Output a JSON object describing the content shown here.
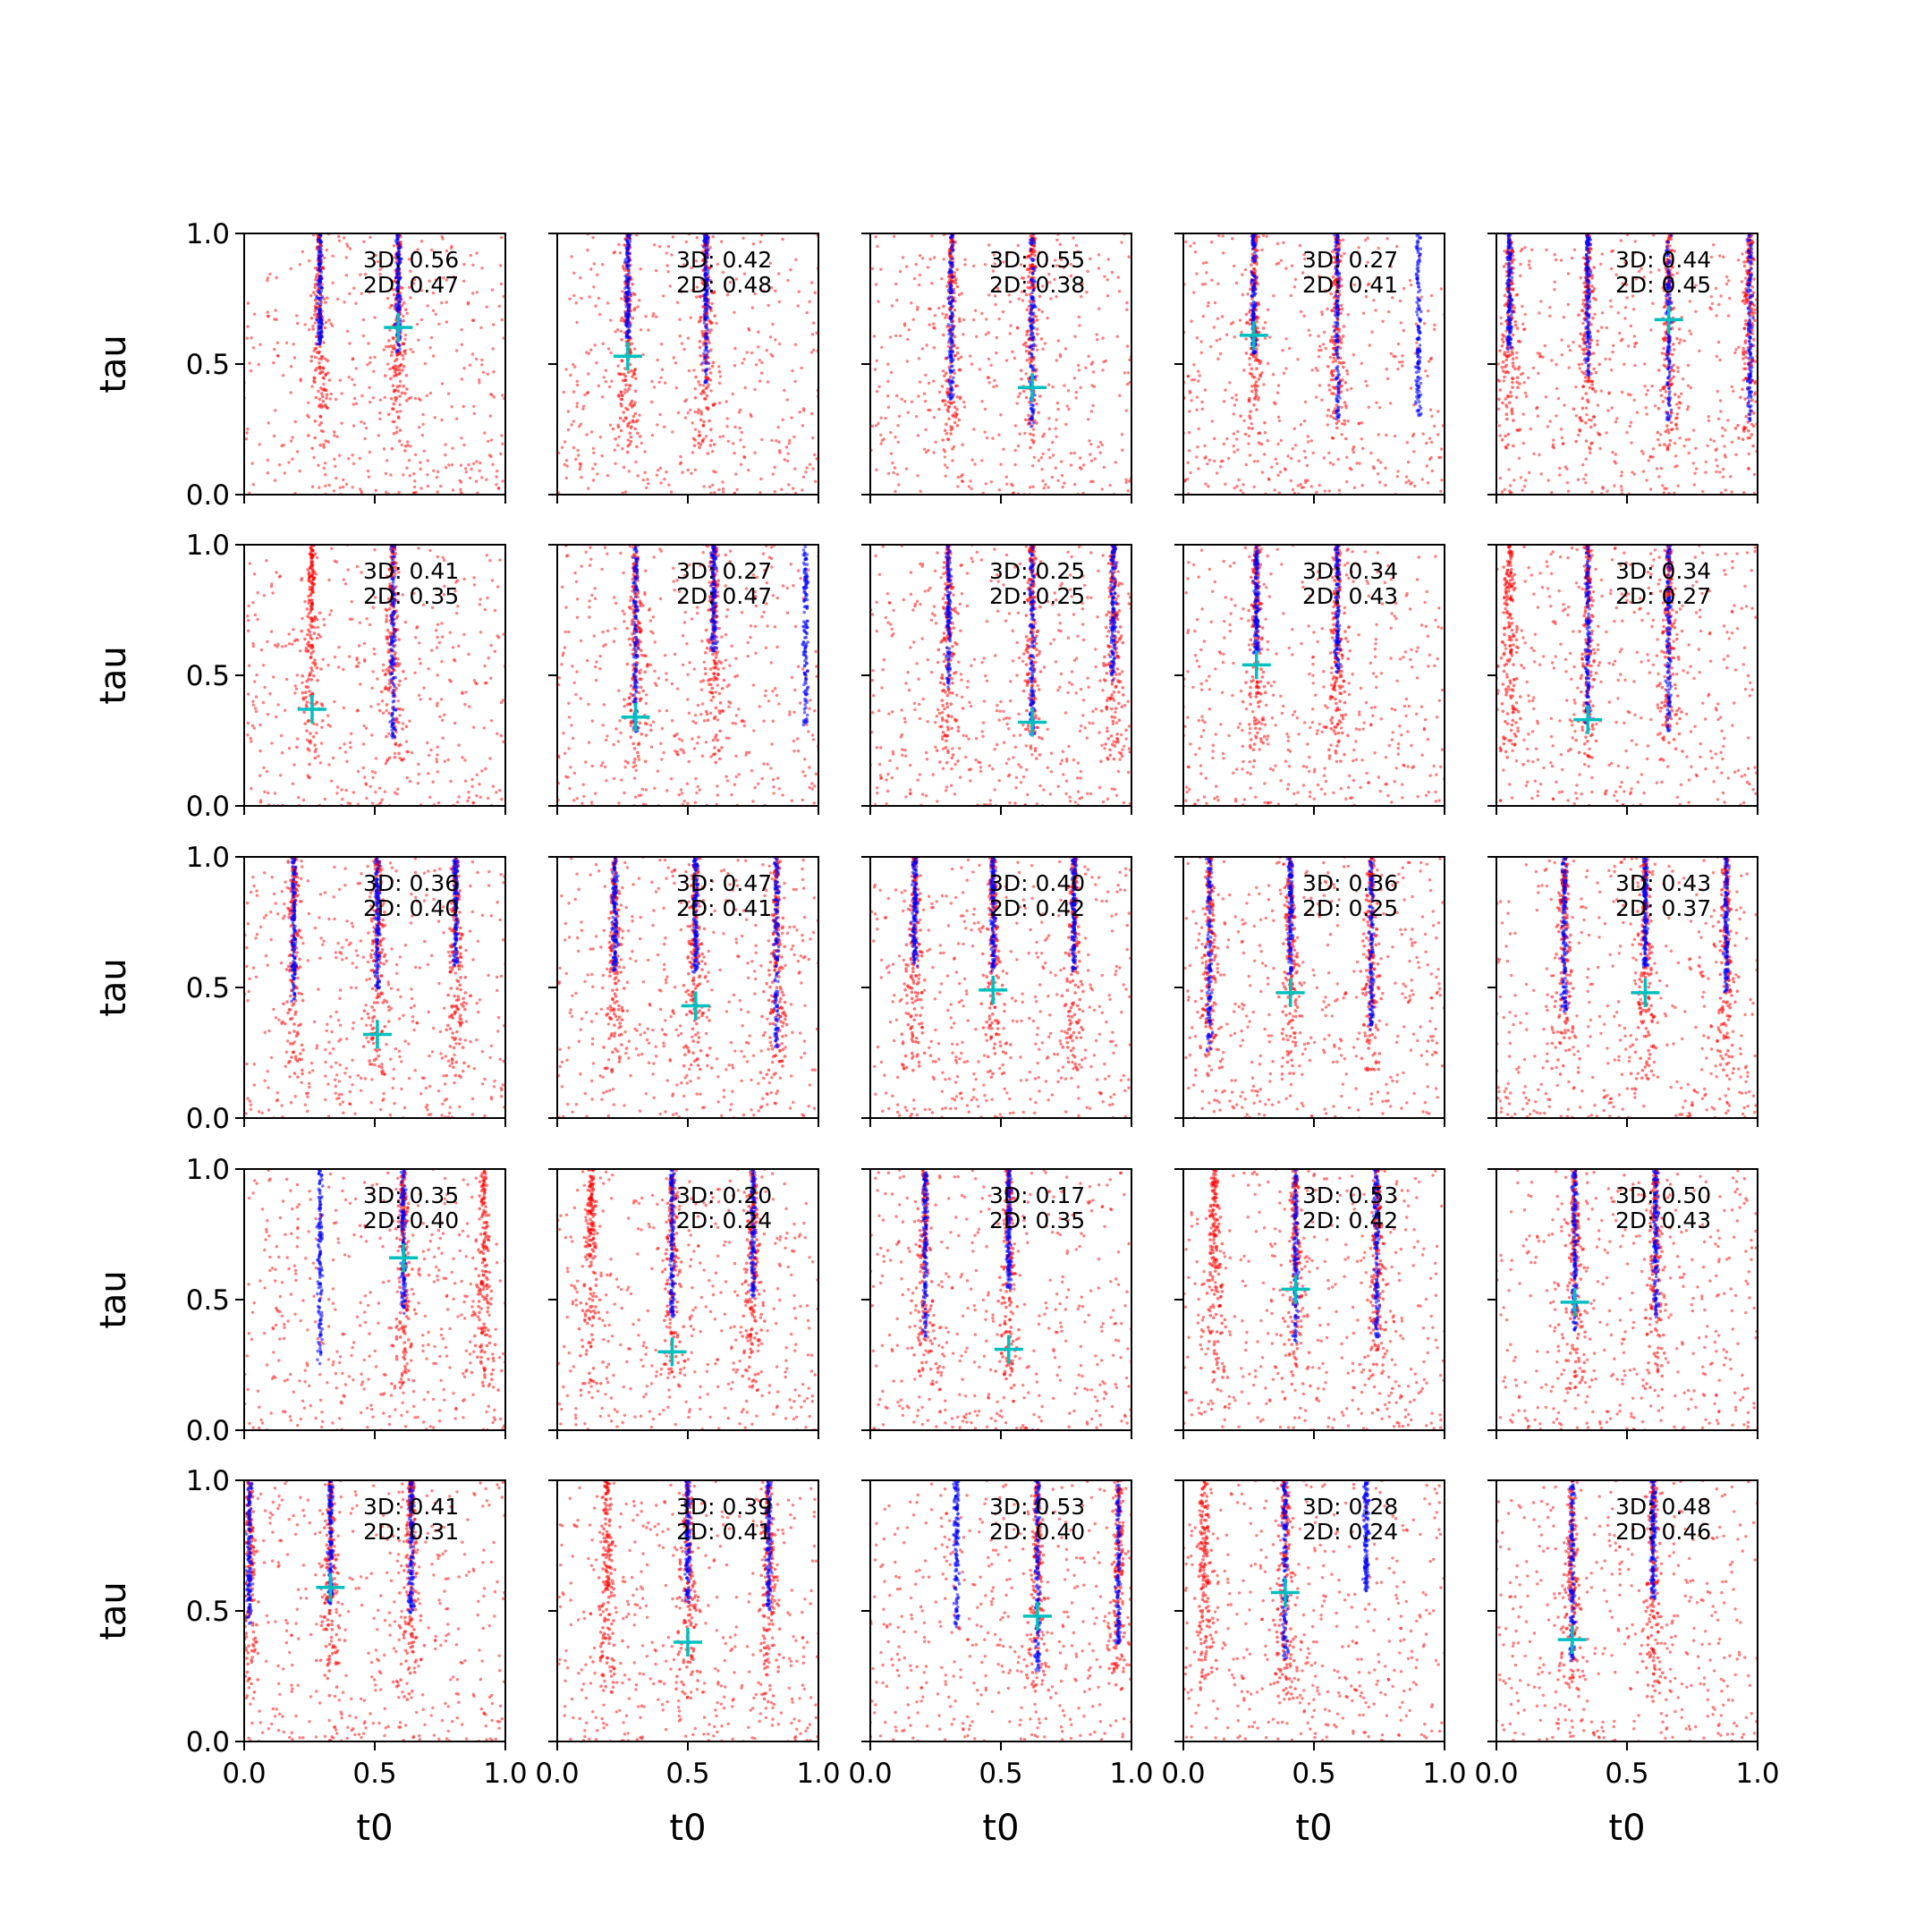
{
  "chart_data": {
    "type": "scatter",
    "layout": {
      "rows": 5,
      "cols": 5
    },
    "xlabel": "t0",
    "ylabel": "tau",
    "xlim": [
      0,
      1
    ],
    "ylim": [
      0,
      1
    ],
    "xticks": [
      "0.0",
      "0.5",
      "1.0"
    ],
    "yticks": [
      "0.0",
      "0.5",
      "1.0"
    ],
    "grid": false,
    "colors": {
      "sample_a": "#0000ff",
      "sample_b": "#ff0000",
      "marker": "#00bfbf"
    },
    "series_note": "blue and red point clouds with a cyan cross marker per panel",
    "panels": [
      {
        "annot3d": "3D: 0.56",
        "annot2d": "2D: 0.47",
        "marker": [
          0.59,
          0.64
        ],
        "blue": [
          0.29,
          0.59
        ],
        "red": [
          0.29,
          0.59
        ]
      },
      {
        "annot3d": "3D: 0.42",
        "annot2d": "2D: 0.48",
        "marker": [
          0.27,
          0.53
        ],
        "blue": [
          0.27,
          0.57
        ],
        "red": [
          0.27,
          0.57
        ]
      },
      {
        "annot3d": "3D: 0.55",
        "annot2d": "2D: 0.38",
        "marker": [
          0.62,
          0.41
        ],
        "blue": [
          0.31,
          0.62
        ],
        "red": [
          0.62,
          0.31
        ]
      },
      {
        "annot3d": "3D: 0.27",
        "annot2d": "2D: 0.41",
        "marker": [
          0.27,
          0.61
        ],
        "blue": [
          0.27,
          0.59,
          0.9
        ],
        "red": [
          0.27,
          0.59
        ]
      },
      {
        "annot3d": "3D: 0.44",
        "annot2d": "2D: 0.45",
        "marker": [
          0.66,
          0.67
        ],
        "blue": [
          0.05,
          0.35,
          0.66,
          0.97
        ],
        "red": [
          0.05,
          0.35,
          0.66,
          0.97
        ]
      },
      {
        "annot3d": "3D: 0.41",
        "annot2d": "2D: 0.35",
        "marker": [
          0.26,
          0.37
        ],
        "blue": [
          0.57
        ],
        "red": [
          0.26,
          0.57
        ]
      },
      {
        "annot3d": "3D: 0.27",
        "annot2d": "2D: 0.47",
        "marker": [
          0.3,
          0.34
        ],
        "blue": [
          0.3,
          0.6,
          0.95
        ],
        "red": [
          0.3,
          0.6
        ]
      },
      {
        "annot3d": "3D: 0.25",
        "annot2d": "2D: 0.25",
        "marker": [
          0.62,
          0.32
        ],
        "blue": [
          0.3,
          0.62,
          0.93
        ],
        "red": [
          0.3,
          0.62,
          0.93
        ]
      },
      {
        "annot3d": "3D: 0.34",
        "annot2d": "2D: 0.43",
        "marker": [
          0.28,
          0.54
        ],
        "blue": [
          0.28,
          0.59
        ],
        "red": [
          0.28,
          0.59
        ]
      },
      {
        "annot3d": "3D: 0.34",
        "annot2d": "2D: 0.27",
        "marker": [
          0.35,
          0.33
        ],
        "blue": [
          0.35,
          0.66
        ],
        "red": [
          0.05,
          0.35,
          0.66
        ]
      },
      {
        "annot3d": "3D: 0.36",
        "annot2d": "2D: 0.40",
        "marker": [
          0.51,
          0.32
        ],
        "blue": [
          0.19,
          0.51,
          0.81
        ],
        "red": [
          0.19,
          0.51,
          0.81
        ]
      },
      {
        "annot3d": "3D: 0.47",
        "annot2d": "2D: 0.41",
        "marker": [
          0.53,
          0.43
        ],
        "blue": [
          0.22,
          0.53,
          0.84
        ],
        "red": [
          0.22,
          0.53,
          0.84
        ]
      },
      {
        "annot3d": "3D: 0.40",
        "annot2d": "2D: 0.42",
        "marker": [
          0.47,
          0.49
        ],
        "blue": [
          0.17,
          0.47,
          0.78
        ],
        "red": [
          0.17,
          0.47,
          0.78
        ]
      },
      {
        "annot3d": "3D: 0.36",
        "annot2d": "2D: 0.25",
        "marker": [
          0.41,
          0.48
        ],
        "blue": [
          0.1,
          0.41,
          0.72
        ],
        "red": [
          0.1,
          0.41,
          0.72
        ]
      },
      {
        "annot3d": "3D: 0.43",
        "annot2d": "2D: 0.37",
        "marker": [
          0.57,
          0.48
        ],
        "blue": [
          0.26,
          0.57,
          0.88
        ],
        "red": [
          0.26,
          0.57,
          0.88
        ]
      },
      {
        "annot3d": "3D: 0.35",
        "annot2d": "2D: 0.40",
        "marker": [
          0.61,
          0.66
        ],
        "blue": [
          0.29,
          0.61
        ],
        "red": [
          0.61,
          0.92
        ]
      },
      {
        "annot3d": "3D: 0.20",
        "annot2d": "2D: 0.24",
        "marker": [
          0.44,
          0.3
        ],
        "blue": [
          0.44,
          0.75
        ],
        "red": [
          0.13,
          0.44,
          0.75
        ]
      },
      {
        "annot3d": "3D: 0.17",
        "annot2d": "2D: 0.35",
        "marker": [
          0.53,
          0.31
        ],
        "blue": [
          0.21,
          0.53
        ],
        "red": [
          0.21,
          0.53
        ]
      },
      {
        "annot3d": "3D: 0.53",
        "annot2d": "2D: 0.42",
        "marker": [
          0.43,
          0.54
        ],
        "blue": [
          0.43,
          0.74
        ],
        "red": [
          0.12,
          0.43,
          0.74
        ]
      },
      {
        "annot3d": "3D: 0.50",
        "annot2d": "2D: 0.43",
        "marker": [
          0.3,
          0.49
        ],
        "blue": [
          0.3,
          0.61
        ],
        "red": [
          0.3,
          0.61
        ]
      },
      {
        "annot3d": "3D: 0.41",
        "annot2d": "2D: 0.31",
        "marker": [
          0.33,
          0.59
        ],
        "blue": [
          0.02,
          0.33,
          0.64
        ],
        "red": [
          0.02,
          0.33,
          0.64
        ]
      },
      {
        "annot3d": "3D: 0.39",
        "annot2d": "2D: 0.41",
        "marker": [
          0.5,
          0.38
        ],
        "blue": [
          0.5,
          0.81
        ],
        "red": [
          0.19,
          0.5,
          0.81
        ]
      },
      {
        "annot3d": "3D: 0.53",
        "annot2d": "2D: 0.40",
        "marker": [
          0.64,
          0.48
        ],
        "blue": [
          0.33,
          0.64,
          0.95
        ],
        "red": [
          0.64,
          0.95
        ]
      },
      {
        "annot3d": "3D: 0.28",
        "annot2d": "2D: 0.24",
        "marker": [
          0.39,
          0.57
        ],
        "blue": [
          0.39,
          0.7
        ],
        "red": [
          0.08,
          0.39
        ]
      },
      {
        "annot3d": "3D: 0.48",
        "annot2d": "2D: 0.46",
        "marker": [
          0.29,
          0.39
        ],
        "blue": [
          0.29,
          0.6
        ],
        "red": [
          0.29,
          0.6
        ]
      }
    ]
  }
}
